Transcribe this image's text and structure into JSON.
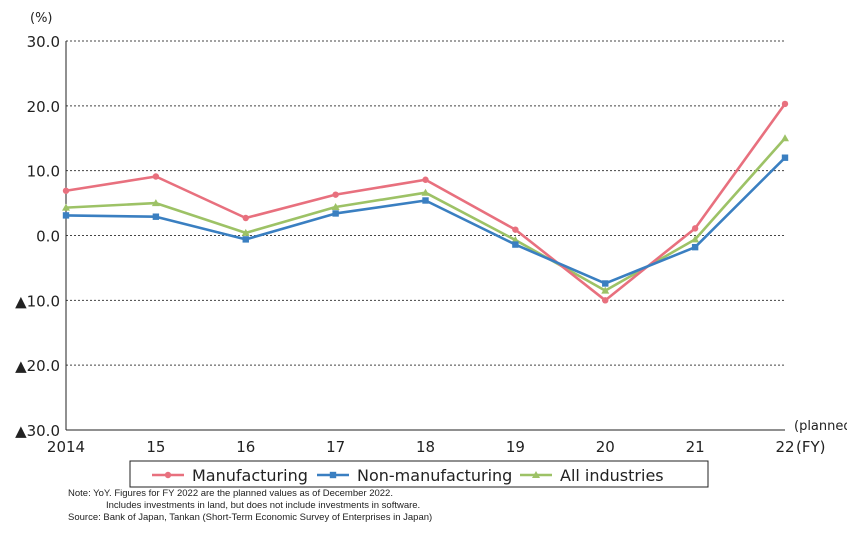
{
  "chart_data": {
    "type": "line",
    "title": "",
    "y_unit": "(%)",
    "x_unit": "(FY)",
    "x_note": "(planned)",
    "categories": [
      "2014",
      "15",
      "16",
      "17",
      "18",
      "19",
      "20",
      "21",
      "22"
    ],
    "ylim": [
      -30,
      30
    ],
    "y_ticks": [
      {
        "value": 30,
        "label": "30.0"
      },
      {
        "value": 20,
        "label": "20.0"
      },
      {
        "value": 10,
        "label": "10.0"
      },
      {
        "value": 0,
        "label": "0.0"
      },
      {
        "value": -10,
        "label": "▲10.0"
      },
      {
        "value": -20,
        "label": "▲20.0"
      },
      {
        "value": -30,
        "label": "▲30.0"
      }
    ],
    "grid": "dotted horizontal",
    "legend_position": "bottom",
    "series": [
      {
        "name": "Manufacturing",
        "color": "#e8707e",
        "marker": "circle",
        "values": [
          6.9,
          9.1,
          2.7,
          6.3,
          8.6,
          0.9,
          -10.0,
          1.1,
          20.3
        ]
      },
      {
        "name": "Non-manufacturing",
        "color": "#3a7fc1",
        "marker": "square",
        "values": [
          3.1,
          2.9,
          -0.6,
          3.4,
          5.4,
          -1.4,
          -7.4,
          -1.8,
          12.0
        ]
      },
      {
        "name": "All industries",
        "color": "#9dc266",
        "marker": "triangle",
        "values": [
          4.3,
          5.0,
          0.4,
          4.4,
          6.6,
          -0.7,
          -8.5,
          -0.6,
          15.0
        ]
      }
    ]
  },
  "notes": {
    "line1": "Note: YoY. Figures for FY 2022 are the planned values as of December 2022.",
    "line2": "Includes investments in land, but does not include investments in software.",
    "line3": "Source: Bank of Japan, Tankan (Short-Term Economic Survey of Enterprises in Japan)"
  }
}
